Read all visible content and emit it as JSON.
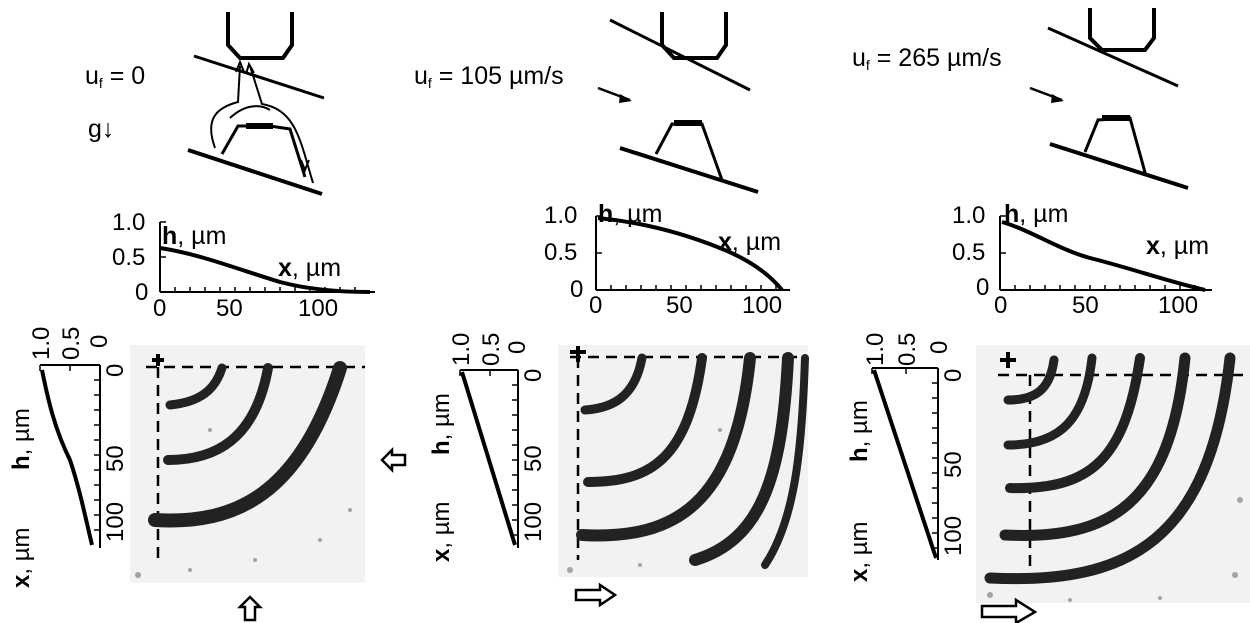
{
  "panels": [
    {
      "speed_symbol": "u",
      "speed_subscript": "f",
      "speed_value": " = 0",
      "gravity_label": "g↓",
      "profile": {
        "y_label_var": "h",
        "y_label_unit": ", µm",
        "x_label_var": "x",
        "x_label_unit": ", µm",
        "y_ticks": [
          "1.0",
          "0.5",
          "0"
        ],
        "x_ticks": [
          "0",
          "50",
          "100"
        ]
      },
      "side_profile": {
        "top_ticks": [
          "1.0",
          "0.5",
          "0"
        ],
        "side_ticks": [
          "0",
          "50",
          "100"
        ],
        "h_var": "h",
        "h_unit": ", µm",
        "x_var": "x",
        "x_unit": ", µm"
      },
      "arrow_label": "up-outline-arrow-icon"
    },
    {
      "speed_symbol": "u",
      "speed_subscript": "f",
      "speed_value": " = 105 µm/s",
      "profile": {
        "y_label_var": "h",
        "y_label_unit": ", µm",
        "x_label_var": "x",
        "x_label_unit": ", µm",
        "y_ticks": [
          "1.0",
          "0.5",
          "0"
        ],
        "x_ticks": [
          "0",
          "50",
          "100"
        ]
      },
      "side_profile": {
        "top_ticks": [
          "1.0",
          "0.5",
          "0"
        ],
        "side_ticks": [
          "0",
          "50",
          "100"
        ],
        "h_var": "h",
        "h_unit": ", µm",
        "x_var": "x",
        "x_unit": ", µm"
      },
      "arrow_label": "right-outline-arrow-icon"
    },
    {
      "speed_symbol": "u",
      "speed_subscript": "f",
      "speed_value": " = 265 µm/s",
      "profile": {
        "y_label_var": "h",
        "y_label_unit": ", µm",
        "x_label_var": "x",
        "x_label_unit": ", µm",
        "y_ticks": [
          "1.0",
          "0.5",
          "0"
        ],
        "x_ticks": [
          "0",
          "50",
          "100"
        ]
      },
      "side_profile": {
        "top_ticks": [
          "1.0",
          "0.5",
          "0"
        ],
        "side_ticks": [
          "0",
          "50",
          "100"
        ],
        "h_var": "h",
        "h_unit": ", µm",
        "x_var": "x",
        "x_unit": ", µm"
      },
      "arrow_label": "right-outline-arrow-icon"
    }
  ],
  "colors": {
    "ink": "#000000",
    "speckle": "#555555",
    "background": "#ffffff"
  }
}
